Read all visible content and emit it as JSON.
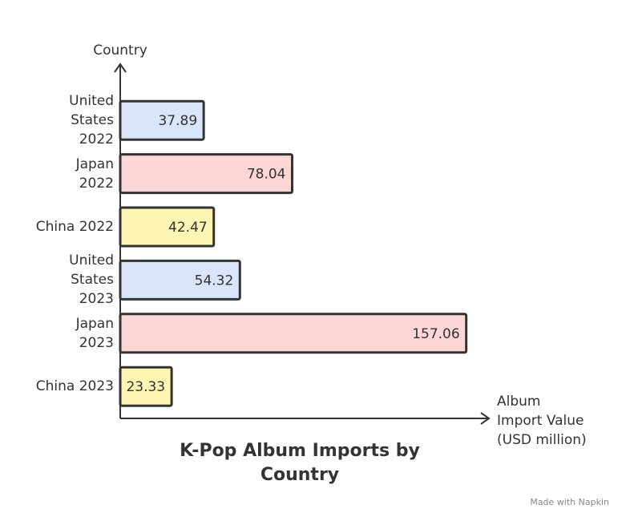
{
  "chart_data": {
    "type": "bar",
    "orientation": "horizontal",
    "title": "K-Pop Album Imports by Country",
    "x_label": "Album\nImport Value\n(USD million)",
    "y_label": "Country",
    "categories": [
      "United\nStates\n2022",
      "Japan\n2022",
      "China 2022",
      "United\nStates\n2023",
      "Japan\n2023",
      "China 2023"
    ],
    "values": [
      37.89,
      78.04,
      42.47,
      54.32,
      157.06,
      23.33
    ],
    "colors": [
      "#d9e5fb",
      "#fdd6d6",
      "#fdf5b3",
      "#d9e5fb",
      "#fdd6d6",
      "#fdf5b3"
    ],
    "xlim": [
      0,
      167
    ],
    "footer": "Made with Napkin"
  }
}
